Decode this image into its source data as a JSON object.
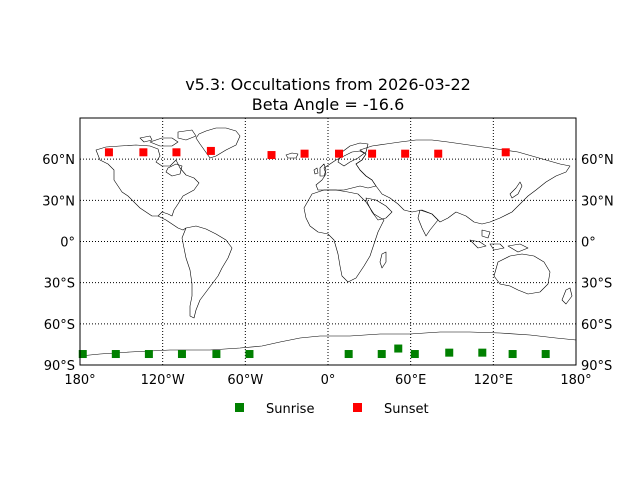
{
  "chart_data": {
    "type": "scatter",
    "title_line1": "v5.3: Occultations from 2026-03-22",
    "title_line2": "Beta Angle = -16.6",
    "projection": "equirectangular world map",
    "xlim": [
      -180,
      180
    ],
    "ylim": [
      -90,
      90
    ],
    "x_ticks": [
      {
        "value": -180,
        "label": "180°"
      },
      {
        "value": -120,
        "label": "120°W"
      },
      {
        "value": -60,
        "label": "60°W"
      },
      {
        "value": 0,
        "label": "0°"
      },
      {
        "value": 60,
        "label": "60°E"
      },
      {
        "value": 120,
        "label": "120°E"
      },
      {
        "value": 180,
        "label": "180°"
      }
    ],
    "y_ticks": [
      {
        "value": 60,
        "label": "60°N"
      },
      {
        "value": 30,
        "label": "30°N"
      },
      {
        "value": 0,
        "label": "0°"
      },
      {
        "value": -30,
        "label": "30°S"
      },
      {
        "value": -60,
        "label": "60°S"
      },
      {
        "value": -90,
        "label": "90°S"
      }
    ],
    "grid": true,
    "legend_position": "bottom-center",
    "series": [
      {
        "name": "Sunrise",
        "color": "#008000",
        "marker": "square",
        "points": [
          {
            "lon": -178,
            "lat": -82
          },
          {
            "lon": -154,
            "lat": -82
          },
          {
            "lon": -130,
            "lat": -82
          },
          {
            "lon": -106,
            "lat": -82
          },
          {
            "lon": -81,
            "lat": -82
          },
          {
            "lon": -57,
            "lat": -82
          },
          {
            "lon": 15,
            "lat": -82
          },
          {
            "lon": 39,
            "lat": -82
          },
          {
            "lon": 51,
            "lat": -78
          },
          {
            "lon": 63,
            "lat": -82
          },
          {
            "lon": 88,
            "lat": -81
          },
          {
            "lon": 112,
            "lat": -81
          },
          {
            "lon": 134,
            "lat": -82
          },
          {
            "lon": 158,
            "lat": -82
          }
        ]
      },
      {
        "name": "Sunset",
        "color": "#ff0000",
        "marker": "square",
        "points": [
          {
            "lon": -159,
            "lat": 65
          },
          {
            "lon": -134,
            "lat": 65
          },
          {
            "lon": -110,
            "lat": 65
          },
          {
            "lon": -85,
            "lat": 66
          },
          {
            "lon": -41,
            "lat": 63
          },
          {
            "lon": -17,
            "lat": 64
          },
          {
            "lon": 8,
            "lat": 64
          },
          {
            "lon": 32,
            "lat": 64
          },
          {
            "lon": 56,
            "lat": 64
          },
          {
            "lon": 80,
            "lat": 64
          },
          {
            "lon": 129,
            "lat": 65
          }
        ]
      }
    ]
  }
}
